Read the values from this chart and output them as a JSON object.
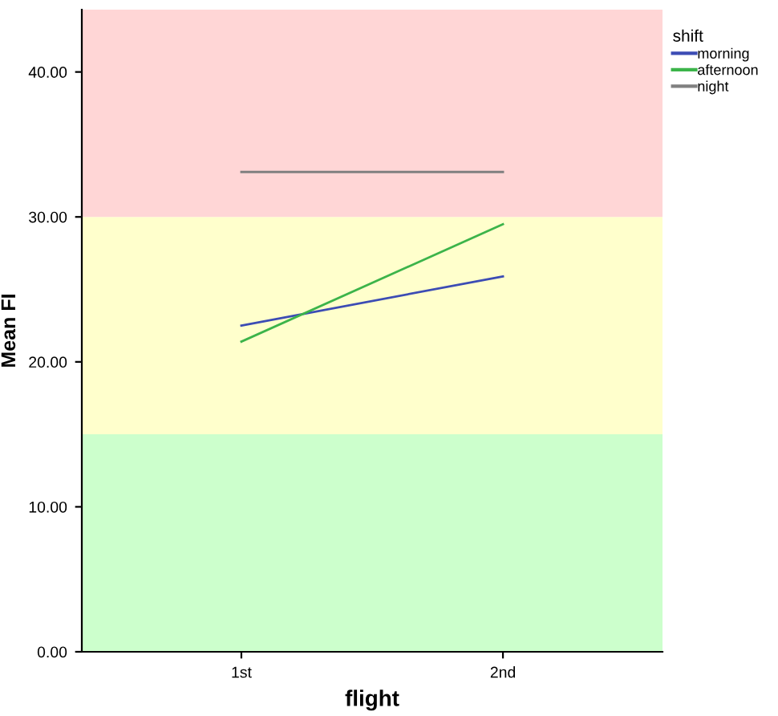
{
  "chart_data": {
    "type": "line",
    "xlabel": "flight",
    "ylabel": "Mean FI",
    "legend_title": "shift",
    "categories": [
      "1st",
      "2nd"
    ],
    "series": [
      {
        "name": "morning",
        "color": "#3c4cb4",
        "values": [
          22.5,
          25.9
        ]
      },
      {
        "name": "afternoon",
        "color": "#3cb44a",
        "values": [
          21.4,
          29.5
        ]
      },
      {
        "name": "night",
        "color": "#808080",
        "values": [
          33.1,
          33.1
        ]
      }
    ],
    "ylim": [
      0,
      44.3
    ],
    "yticks": [
      {
        "value": 0,
        "label": "0.00"
      },
      {
        "value": 10,
        "label": "10.00"
      },
      {
        "value": 20,
        "label": "20.00"
      },
      {
        "value": 30,
        "label": "30.00"
      },
      {
        "value": 40,
        "label": "40.00"
      }
    ],
    "bands": [
      {
        "axis": "y",
        "from": 0,
        "to": 15,
        "color": "#ccffcc"
      },
      {
        "axis": "y",
        "from": 15,
        "to": 30,
        "color": "#ffffcc"
      },
      {
        "axis": "y",
        "from": 30,
        "to": 44.3,
        "color": "#ffd6d6"
      }
    ],
    "grid": false,
    "legend": "top right",
    "marker": "none",
    "line_style": "solid"
  }
}
